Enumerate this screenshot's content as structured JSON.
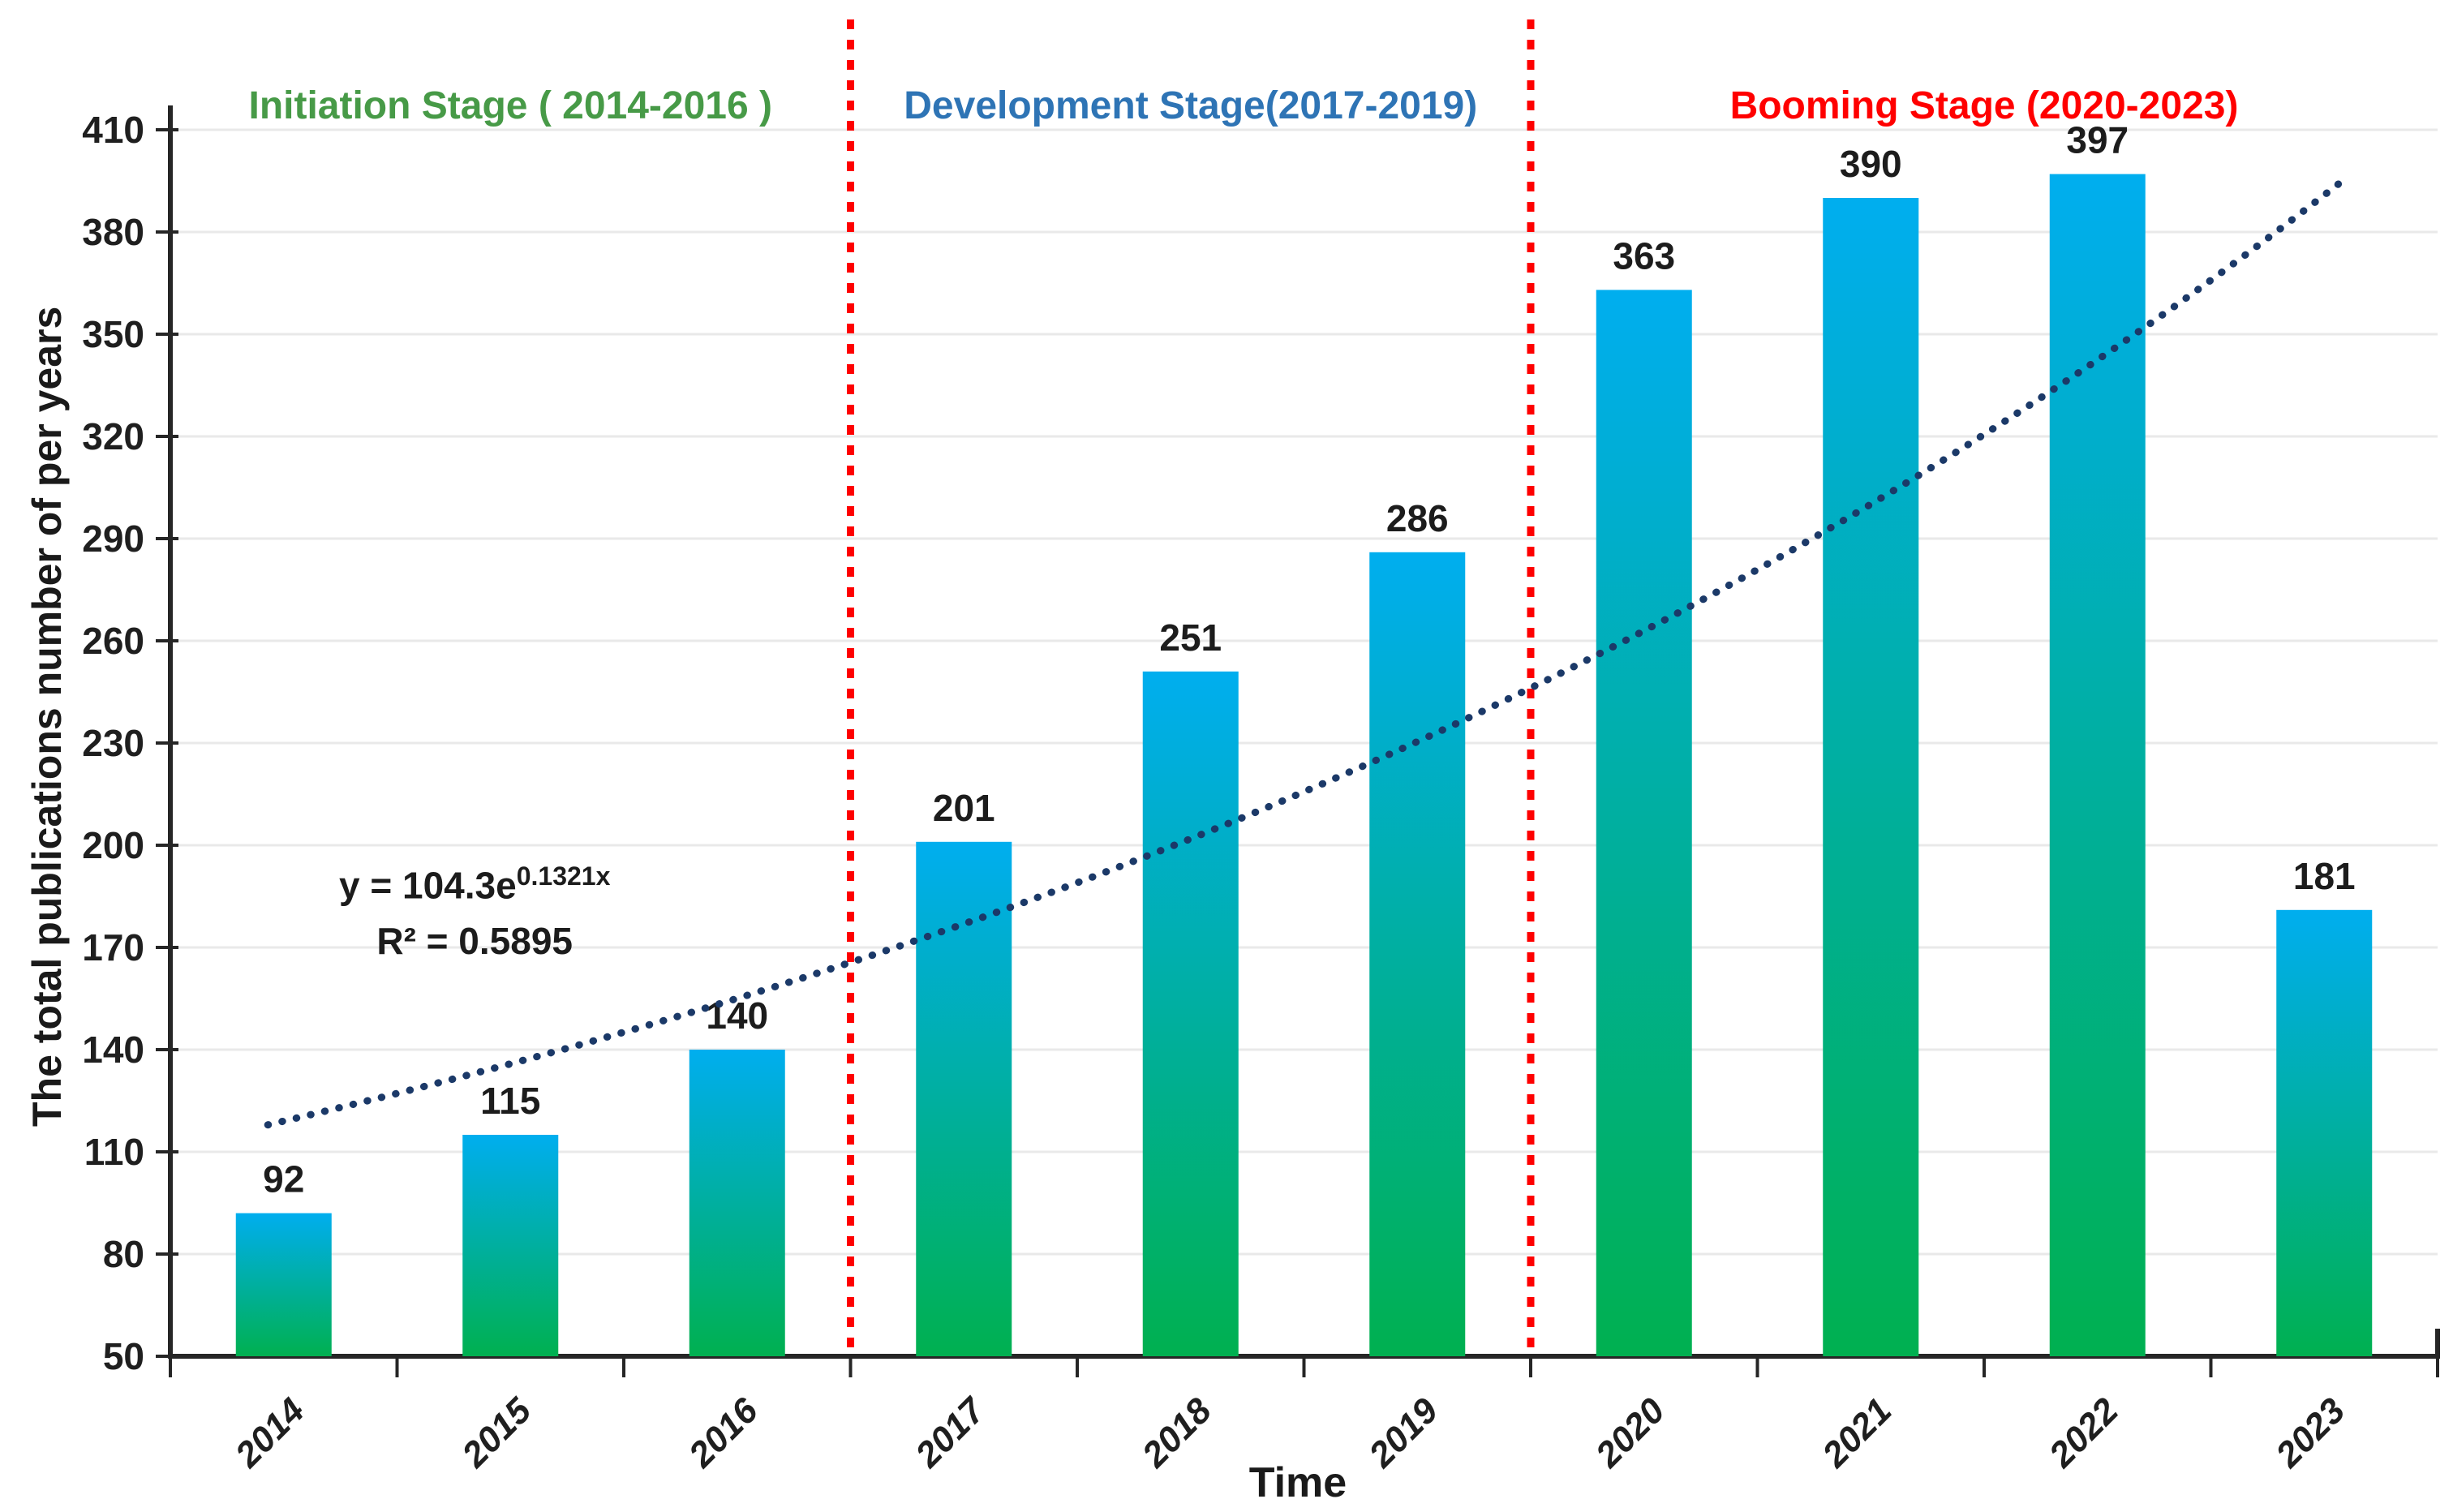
{
  "chart_data": {
    "type": "bar",
    "title": "",
    "categories": [
      "2014",
      "2015",
      "2016",
      "2017",
      "2018",
      "2019",
      "2020",
      "2021",
      "2022",
      "2023"
    ],
    "values": [
      92,
      115,
      140,
      201,
      251,
      286,
      363,
      390,
      397,
      181
    ],
    "xlabel": "Time",
    "ylabel": "The total publications number of per years",
    "ylim": [
      50,
      410
    ],
    "yticks": [
      50,
      80,
      110,
      140,
      170,
      200,
      230,
      260,
      290,
      320,
      350,
      380,
      410
    ],
    "grid": true,
    "legend": "none",
    "bar_gradient": {
      "top": "#00AEEF",
      "bottom": "#00B050"
    },
    "trendline": {
      "type": "exponential-dotted",
      "a": 104.3,
      "b": 0.1321,
      "color": "#1B3968",
      "equation_base": "y = 104.3e",
      "equation_exponent": "0.1321x",
      "r_squared": "R² = 0.5895"
    },
    "stages": [
      {
        "label": "Initiation Stage ( 2014-2016 )",
        "color": "#479A47",
        "from": "2014",
        "to": "2016"
      },
      {
        "label": "Development Stage(2017-2019)",
        "color": "#2E74B5",
        "from": "2017",
        "to": "2019"
      },
      {
        "label": "Booming Stage (2020-2023)",
        "color": "#FF0000",
        "from": "2020",
        "to": "2023"
      }
    ],
    "dividers": {
      "color": "#FE0000",
      "after_categories": [
        "2016",
        "2019"
      ]
    },
    "colors": {
      "axis": "#262626",
      "gridline": "#E9E9E9",
      "tick_label": "#1f1f1f",
      "value_label": "#1c1c1c"
    }
  }
}
